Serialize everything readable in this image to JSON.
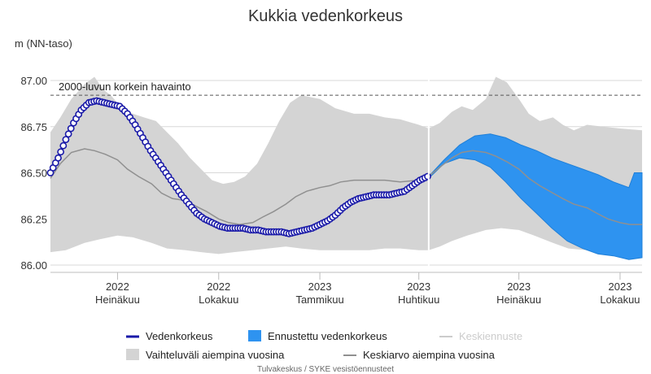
{
  "chart_data": {
    "type": "line",
    "title": "Kukkia vedenkorkeus",
    "ylabel": "m (NN-taso)",
    "ylim": [
      86.0,
      87.0
    ],
    "yticks": [
      "86.00",
      "86.25",
      "86.50",
      "86.75",
      "87.00"
    ],
    "ytick_values": [
      86.0,
      86.25,
      86.5,
      86.75,
      87.0
    ],
    "xlim": [
      "2022-05-01",
      "2023-10-21"
    ],
    "xticks": [
      {
        "date": "2022-07-01",
        "year": "2022",
        "month": "Heinäkuu"
      },
      {
        "date": "2022-10-01",
        "year": "2022",
        "month": "Lokakuu"
      },
      {
        "date": "2023-01-01",
        "year": "2023",
        "month": "Tammikuu"
      },
      {
        "date": "2023-04-01",
        "year": "2023",
        "month": "Huhtikuu"
      },
      {
        "date": "2023-07-01",
        "year": "2023",
        "month": "Heinäkuu"
      },
      {
        "date": "2023-10-01",
        "year": "2023",
        "month": "Lokakuu"
      }
    ],
    "grid": true,
    "legend_position": "bottom",
    "current_date": "2023-04-10",
    "annotation": {
      "label": "2000-luvun korkein havainto",
      "value": 86.92
    },
    "series": [
      {
        "name": "Vedenkorkeus",
        "kind": "observed",
        "color": "#1a1aa8",
        "points": [
          [
            "2022-05-01",
            86.5
          ],
          [
            "2022-05-08",
            86.58
          ],
          [
            "2022-05-15",
            86.68
          ],
          [
            "2022-05-22",
            86.77
          ],
          [
            "2022-05-29",
            86.84
          ],
          [
            "2022-06-05",
            86.88
          ],
          [
            "2022-06-12",
            86.89
          ],
          [
            "2022-06-19",
            86.88
          ],
          [
            "2022-06-26",
            86.87
          ],
          [
            "2022-07-03",
            86.86
          ],
          [
            "2022-07-10",
            86.82
          ],
          [
            "2022-07-17",
            86.76
          ],
          [
            "2022-07-24",
            86.69
          ],
          [
            "2022-07-31",
            86.62
          ],
          [
            "2022-08-07",
            86.56
          ],
          [
            "2022-08-14",
            86.5
          ],
          [
            "2022-08-21",
            86.44
          ],
          [
            "2022-08-28",
            86.38
          ],
          [
            "2022-09-04",
            86.33
          ],
          [
            "2022-09-11",
            86.28
          ],
          [
            "2022-09-18",
            86.25
          ],
          [
            "2022-09-25",
            86.23
          ],
          [
            "2022-10-02",
            86.21
          ],
          [
            "2022-10-09",
            86.2
          ],
          [
            "2022-10-16",
            86.2
          ],
          [
            "2022-10-23",
            86.2
          ],
          [
            "2022-10-30",
            86.19
          ],
          [
            "2022-11-06",
            86.19
          ],
          [
            "2022-11-13",
            86.18
          ],
          [
            "2022-11-20",
            86.18
          ],
          [
            "2022-11-27",
            86.18
          ],
          [
            "2022-12-04",
            86.17
          ],
          [
            "2022-12-11",
            86.18
          ],
          [
            "2022-12-18",
            86.19
          ],
          [
            "2022-12-25",
            86.2
          ],
          [
            "2023-01-01",
            86.22
          ],
          [
            "2023-01-08",
            86.24
          ],
          [
            "2023-01-15",
            86.27
          ],
          [
            "2023-01-22",
            86.31
          ],
          [
            "2023-01-29",
            86.34
          ],
          [
            "2023-02-05",
            86.36
          ],
          [
            "2023-02-12",
            86.37
          ],
          [
            "2023-02-19",
            86.38
          ],
          [
            "2023-02-26",
            86.38
          ],
          [
            "2023-03-05",
            86.38
          ],
          [
            "2023-03-12",
            86.39
          ],
          [
            "2023-03-19",
            86.4
          ],
          [
            "2023-03-26",
            86.43
          ],
          [
            "2023-04-02",
            86.46
          ],
          [
            "2023-04-09",
            86.48
          ]
        ]
      },
      {
        "name": "Ennustettu vedenkorkeus",
        "kind": "forecast-range",
        "color": "#2e93f0",
        "upper": [
          [
            "2023-04-10",
            86.48
          ],
          [
            "2023-04-24",
            86.57
          ],
          [
            "2023-05-08",
            86.65
          ],
          [
            "2023-05-22",
            86.7
          ],
          [
            "2023-06-05",
            86.71
          ],
          [
            "2023-06-19",
            86.69
          ],
          [
            "2023-07-03",
            86.65
          ],
          [
            "2023-07-17",
            86.62
          ],
          [
            "2023-07-31",
            86.58
          ],
          [
            "2023-08-14",
            86.55
          ],
          [
            "2023-08-28",
            86.52
          ],
          [
            "2023-09-11",
            86.49
          ],
          [
            "2023-09-25",
            86.45
          ],
          [
            "2023-10-09",
            86.42
          ],
          [
            "2023-10-14",
            86.5
          ],
          [
            "2023-10-21",
            86.5
          ]
        ],
        "lower": [
          [
            "2023-04-10",
            86.47
          ],
          [
            "2023-04-24",
            86.55
          ],
          [
            "2023-05-08",
            86.58
          ],
          [
            "2023-05-22",
            86.57
          ],
          [
            "2023-06-05",
            86.53
          ],
          [
            "2023-06-19",
            86.45
          ],
          [
            "2023-07-03",
            86.36
          ],
          [
            "2023-07-17",
            86.28
          ],
          [
            "2023-07-31",
            86.2
          ],
          [
            "2023-08-14",
            86.13
          ],
          [
            "2023-08-28",
            86.09
          ],
          [
            "2023-09-11",
            86.06
          ],
          [
            "2023-09-25",
            86.05
          ],
          [
            "2023-10-09",
            86.03
          ],
          [
            "2023-10-21",
            86.04
          ]
        ]
      },
      {
        "name": "Keskiennuste",
        "kind": "forecast-mean",
        "color": "#cccccc",
        "points": []
      },
      {
        "name": "Vaihteluväli aiempina vuosina",
        "kind": "historical-range",
        "color": "#d4d4d4",
        "upper": [
          [
            "2022-05-01",
            86.72
          ],
          [
            "2022-05-10",
            86.8
          ],
          [
            "2022-05-20",
            86.9
          ],
          [
            "2022-06-01",
            86.98
          ],
          [
            "2022-06-10",
            87.02
          ],
          [
            "2022-06-18",
            86.95
          ],
          [
            "2022-06-25",
            86.92
          ],
          [
            "2022-07-05",
            86.85
          ],
          [
            "2022-07-15",
            86.82
          ],
          [
            "2022-07-25",
            86.8
          ],
          [
            "2022-08-05",
            86.78
          ],
          [
            "2022-08-15",
            86.72
          ],
          [
            "2022-08-25",
            86.66
          ],
          [
            "2022-09-05",
            86.58
          ],
          [
            "2022-09-15",
            86.52
          ],
          [
            "2022-09-25",
            86.46
          ],
          [
            "2022-10-05",
            86.44
          ],
          [
            "2022-10-15",
            86.45
          ],
          [
            "2022-10-25",
            86.48
          ],
          [
            "2022-11-05",
            86.55
          ],
          [
            "2022-11-15",
            86.66
          ],
          [
            "2022-11-25",
            86.78
          ],
          [
            "2022-12-05",
            86.88
          ],
          [
            "2022-12-15",
            86.92
          ],
          [
            "2023-01-01",
            86.9
          ],
          [
            "2023-01-15",
            86.85
          ],
          [
            "2023-02-01",
            86.82
          ],
          [
            "2023-02-15",
            86.82
          ],
          [
            "2023-03-01",
            86.8
          ],
          [
            "2023-03-15",
            86.79
          ],
          [
            "2023-04-01",
            86.76
          ],
          [
            "2023-04-10",
            86.74
          ],
          [
            "2023-04-20",
            86.77
          ],
          [
            "2023-05-01",
            86.83
          ],
          [
            "2023-05-10",
            86.86
          ],
          [
            "2023-05-20",
            86.84
          ],
          [
            "2023-06-01",
            86.9
          ],
          [
            "2023-06-10",
            87.02
          ],
          [
            "2023-06-20",
            86.99
          ],
          [
            "2023-07-01",
            86.9
          ],
          [
            "2023-07-10",
            86.82
          ],
          [
            "2023-07-20",
            86.78
          ],
          [
            "2023-08-01",
            86.8
          ],
          [
            "2023-08-10",
            86.76
          ],
          [
            "2023-08-20",
            86.73
          ],
          [
            "2023-09-01",
            86.76
          ],
          [
            "2023-09-15",
            86.75
          ],
          [
            "2023-10-01",
            86.74
          ],
          [
            "2023-10-21",
            86.73
          ]
        ],
        "lower": [
          [
            "2022-05-01",
            86.07
          ],
          [
            "2022-05-15",
            86.08
          ],
          [
            "2022-06-01",
            86.12
          ],
          [
            "2022-06-15",
            86.14
          ],
          [
            "2022-07-01",
            86.16
          ],
          [
            "2022-07-15",
            86.15
          ],
          [
            "2022-08-01",
            86.12
          ],
          [
            "2022-08-15",
            86.09
          ],
          [
            "2022-09-01",
            86.08
          ],
          [
            "2022-09-15",
            86.07
          ],
          [
            "2022-10-01",
            86.06
          ],
          [
            "2022-10-15",
            86.07
          ],
          [
            "2022-11-01",
            86.08
          ],
          [
            "2022-11-15",
            86.09
          ],
          [
            "2022-12-01",
            86.1
          ],
          [
            "2022-12-15",
            86.09
          ],
          [
            "2023-01-01",
            86.08
          ],
          [
            "2023-01-15",
            86.08
          ],
          [
            "2023-02-01",
            86.08
          ],
          [
            "2023-02-15",
            86.08
          ],
          [
            "2023-03-01",
            86.09
          ],
          [
            "2023-03-15",
            86.09
          ],
          [
            "2023-04-01",
            86.08
          ],
          [
            "2023-04-10",
            86.08
          ],
          [
            "2023-04-20",
            86.1
          ],
          [
            "2023-05-01",
            86.13
          ],
          [
            "2023-05-15",
            86.16
          ],
          [
            "2023-06-01",
            86.19
          ],
          [
            "2023-06-15",
            86.2
          ],
          [
            "2023-07-01",
            86.19
          ],
          [
            "2023-07-15",
            86.16
          ],
          [
            "2023-08-01",
            86.12
          ],
          [
            "2023-08-15",
            86.09
          ],
          [
            "2023-09-01",
            86.08
          ],
          [
            "2023-09-15",
            86.07
          ],
          [
            "2023-10-01",
            86.06
          ],
          [
            "2023-10-21",
            86.06
          ]
        ]
      },
      {
        "name": "Keskiarvo aiempina vuosina",
        "kind": "historical-mean",
        "color": "#909090",
        "points": [
          [
            "2022-05-01",
            86.47
          ],
          [
            "2022-05-10",
            86.55
          ],
          [
            "2022-05-20",
            86.61
          ],
          [
            "2022-06-01",
            86.63
          ],
          [
            "2022-06-10",
            86.62
          ],
          [
            "2022-06-20",
            86.6
          ],
          [
            "2022-07-01",
            86.57
          ],
          [
            "2022-07-10",
            86.52
          ],
          [
            "2022-07-20",
            86.48
          ],
          [
            "2022-08-01",
            86.44
          ],
          [
            "2022-08-10",
            86.39
          ],
          [
            "2022-08-20",
            86.36
          ],
          [
            "2022-09-01",
            86.35
          ],
          [
            "2022-09-10",
            86.32
          ],
          [
            "2022-09-20",
            86.29
          ],
          [
            "2022-10-01",
            86.25
          ],
          [
            "2022-10-10",
            86.23
          ],
          [
            "2022-10-20",
            86.22
          ],
          [
            "2022-11-01",
            86.23
          ],
          [
            "2022-11-10",
            86.26
          ],
          [
            "2022-11-20",
            86.29
          ],
          [
            "2022-12-01",
            86.33
          ],
          [
            "2022-12-10",
            86.37
          ],
          [
            "2022-12-20",
            86.4
          ],
          [
            "2023-01-01",
            86.42
          ],
          [
            "2023-01-10",
            86.43
          ],
          [
            "2023-01-20",
            86.45
          ],
          [
            "2023-02-01",
            86.46
          ],
          [
            "2023-02-15",
            86.46
          ],
          [
            "2023-03-01",
            86.46
          ],
          [
            "2023-03-15",
            86.45
          ],
          [
            "2023-04-01",
            86.46
          ],
          [
            "2023-04-10",
            86.48
          ],
          [
            "2023-04-20",
            86.53
          ],
          [
            "2023-05-01",
            86.58
          ],
          [
            "2023-05-10",
            86.61
          ],
          [
            "2023-05-20",
            86.62
          ],
          [
            "2023-06-01",
            86.61
          ],
          [
            "2023-06-10",
            86.59
          ],
          [
            "2023-06-20",
            86.56
          ],
          [
            "2023-07-01",
            86.52
          ],
          [
            "2023-07-10",
            86.47
          ],
          [
            "2023-07-20",
            86.43
          ],
          [
            "2023-08-01",
            86.39
          ],
          [
            "2023-08-10",
            86.36
          ],
          [
            "2023-08-20",
            86.33
          ],
          [
            "2023-09-01",
            86.31
          ],
          [
            "2023-09-10",
            86.28
          ],
          [
            "2023-09-20",
            86.25
          ],
          [
            "2023-10-01",
            86.23
          ],
          [
            "2023-10-10",
            86.22
          ],
          [
            "2023-10-21",
            86.22
          ]
        ]
      }
    ]
  },
  "credits": "Tulvakeskus / SYKE vesistöennusteet"
}
